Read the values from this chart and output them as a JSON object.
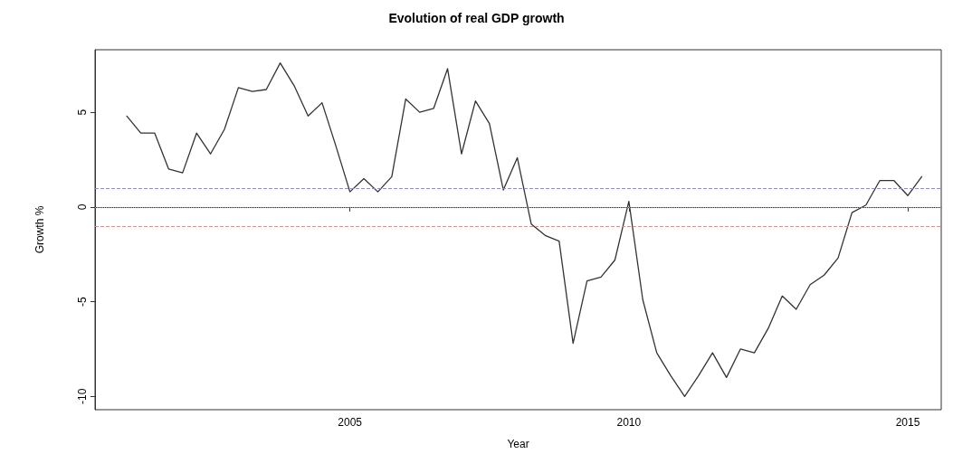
{
  "chart_data": {
    "type": "line",
    "title": "Evolution of real GDP growth",
    "xlabel": "Year",
    "ylabel": "Growth %",
    "x": [
      2001,
      2001.25,
      2001.5,
      2001.75,
      2002,
      2002.25,
      2002.5,
      2002.75,
      2003,
      2003.25,
      2003.5,
      2003.75,
      2004,
      2004.25,
      2004.5,
      2004.75,
      2005,
      2005.25,
      2005.5,
      2005.75,
      2006,
      2006.25,
      2006.5,
      2006.75,
      2007,
      2007.25,
      2007.5,
      2007.75,
      2008,
      2008.25,
      2008.5,
      2008.75,
      2009,
      2009.25,
      2009.5,
      2009.75,
      2010,
      2010.25,
      2010.5,
      2010.75,
      2011,
      2011.25,
      2011.5,
      2011.75,
      2012,
      2012.25,
      2012.5,
      2012.75,
      2013,
      2013.25,
      2013.5,
      2013.75,
      2014,
      2014.25,
      2014.5,
      2014.75,
      2015,
      2015.25
    ],
    "series": [
      {
        "color": "#333333",
        "values": [
          4.8,
          3.9,
          3.9,
          2.0,
          1.8,
          3.9,
          2.8,
          4.1,
          6.3,
          6.1,
          6.2,
          7.6,
          6.4,
          4.8,
          5.5,
          3.2,
          0.8,
          1.5,
          0.8,
          1.6,
          5.7,
          5.0,
          5.2,
          7.3,
          2.8,
          5.6,
          4.4,
          0.9,
          2.6,
          -0.9,
          -1.5,
          -1.8,
          -7.2,
          -3.9,
          -3.7,
          -2.8,
          0.3,
          -4.9,
          -7.7,
          -8.9,
          -10,
          -8.9,
          -7.7,
          -9.0,
          -7.5,
          -7.7,
          -6.4,
          -4.7,
          -5.4,
          -4.1,
          -3.6,
          -2.7,
          -0.3,
          0.1,
          1.4,
          1.4,
          0.6,
          1.6
        ]
      }
    ],
    "xlim": [
      2000.43,
      2015.6
    ],
    "xticks": [
      2005,
      2010,
      2015
    ],
    "ylim": [
      -10.7,
      8.3
    ],
    "yticks": [
      -10,
      -5,
      0,
      5
    ],
    "ref_lines": [
      {
        "axis": "y",
        "value": 1,
        "color": "#8888ee",
        "line_style": "dashed"
      },
      {
        "axis": "y",
        "value": 0,
        "color": "#aaaaaa",
        "line_style": "dotted"
      },
      {
        "axis": "y",
        "value": -1,
        "color": "#ee8888",
        "line_style": "dashed"
      }
    ],
    "marker": "none",
    "line_style": "solid"
  }
}
